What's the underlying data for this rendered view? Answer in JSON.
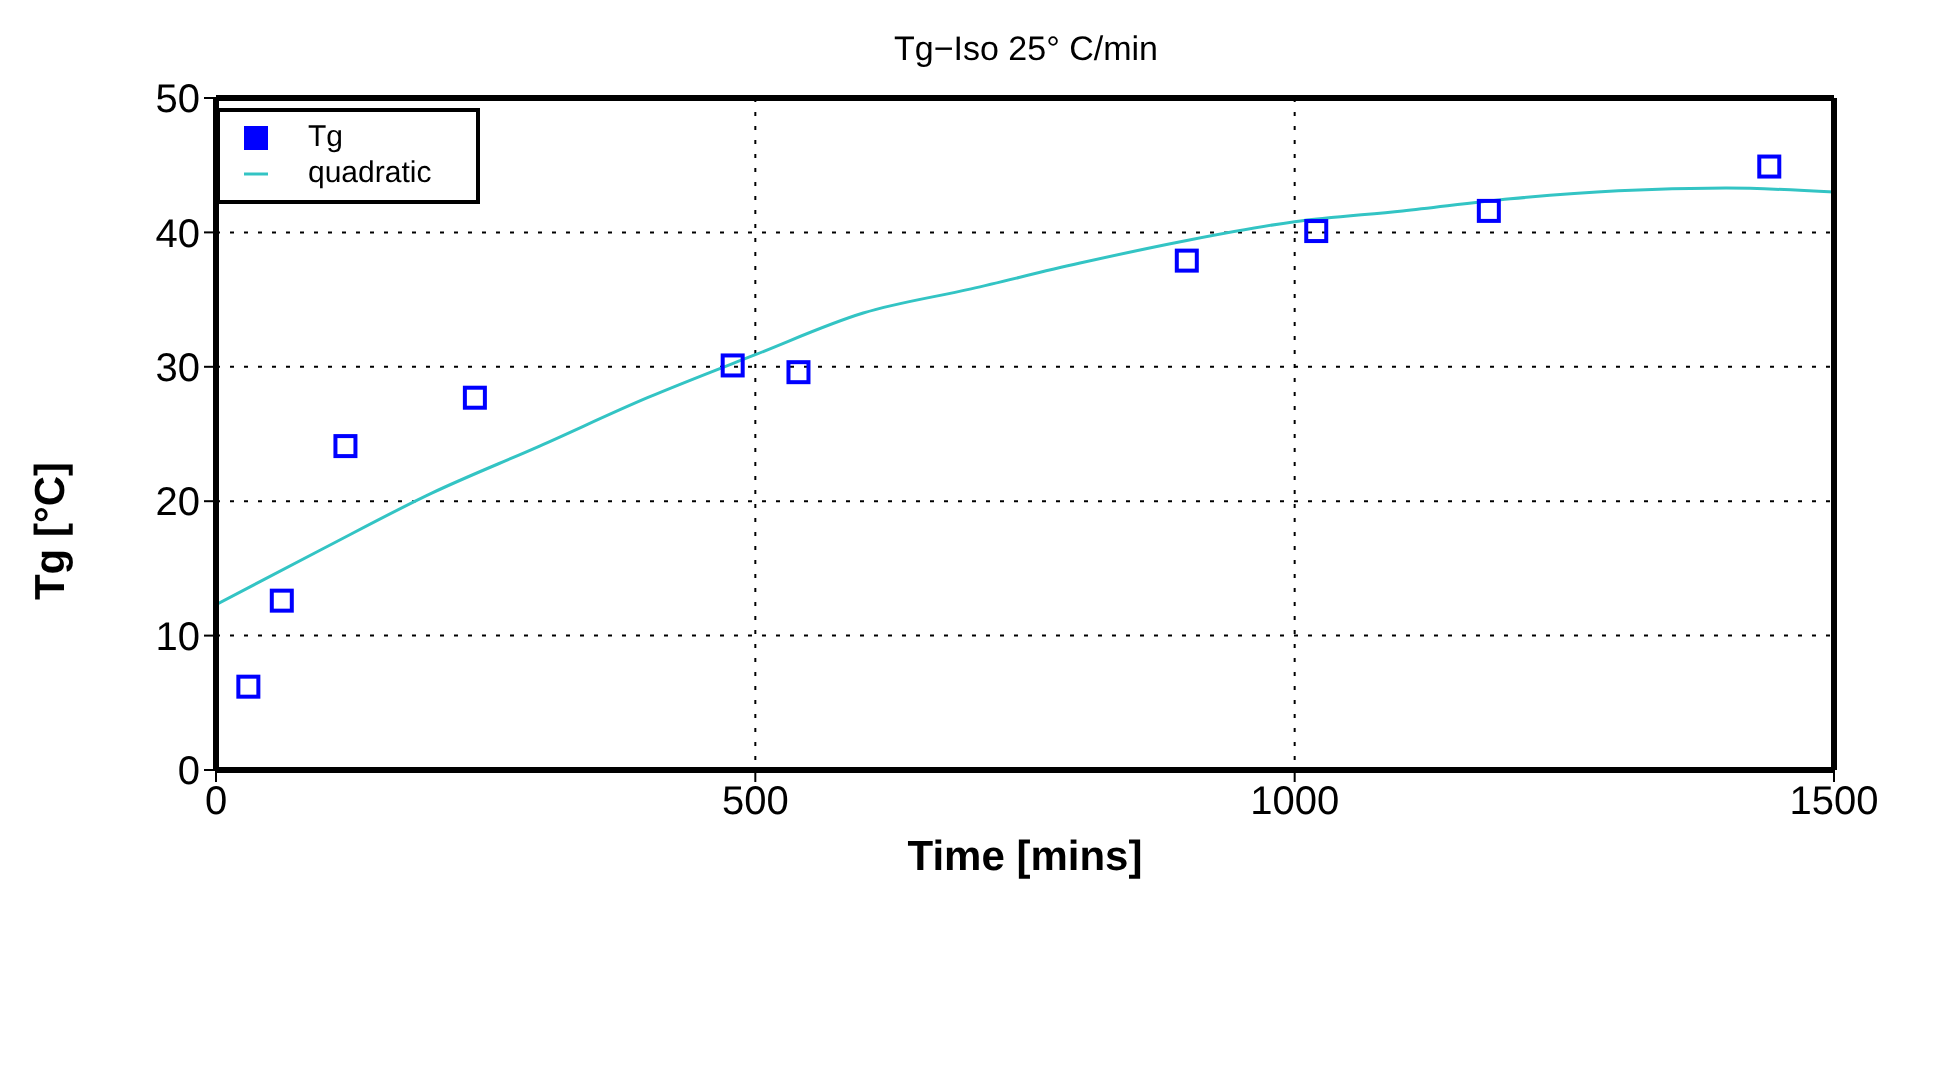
{
  "chart_data": {
    "type": "scatter",
    "title": "Tg−Iso 25° C/min",
    "xlabel": "Time [mins]",
    "ylabel": "Tg [°C]",
    "xlim": [
      0,
      1500
    ],
    "xticks": [
      0,
      500,
      1000,
      1500
    ],
    "ylim": [
      0,
      50
    ],
    "yticks": [
      0,
      10,
      20,
      30,
      40,
      50
    ],
    "grid": true,
    "legend": "top left",
    "series": [
      {
        "name": "Tg",
        "type": "scatter",
        "marker": "square",
        "color": "#0000ff",
        "x": [
          30,
          61,
          120,
          240,
          479,
          540,
          900,
          1020,
          1180,
          1440
        ],
        "values": [
          6.2,
          12.6,
          24.1,
          27.7,
          30.1,
          29.6,
          37.9,
          40.1,
          41.6,
          44.9
        ]
      },
      {
        "name": "quadratic",
        "type": "line",
        "marker": "none",
        "color": "#33c4c4",
        "x": [
          0,
          100,
          200,
          300,
          400,
          500,
          600,
          700,
          800,
          900,
          1000,
          1100,
          1200,
          1300,
          1400,
          1500
        ],
        "values": [
          12.3,
          16.5,
          20.6,
          24.1,
          27.7,
          30.9,
          34.0,
          35.8,
          37.7,
          39.4,
          40.8,
          41.6,
          42.5,
          43.1,
          43.3,
          43.0
        ]
      }
    ]
  }
}
